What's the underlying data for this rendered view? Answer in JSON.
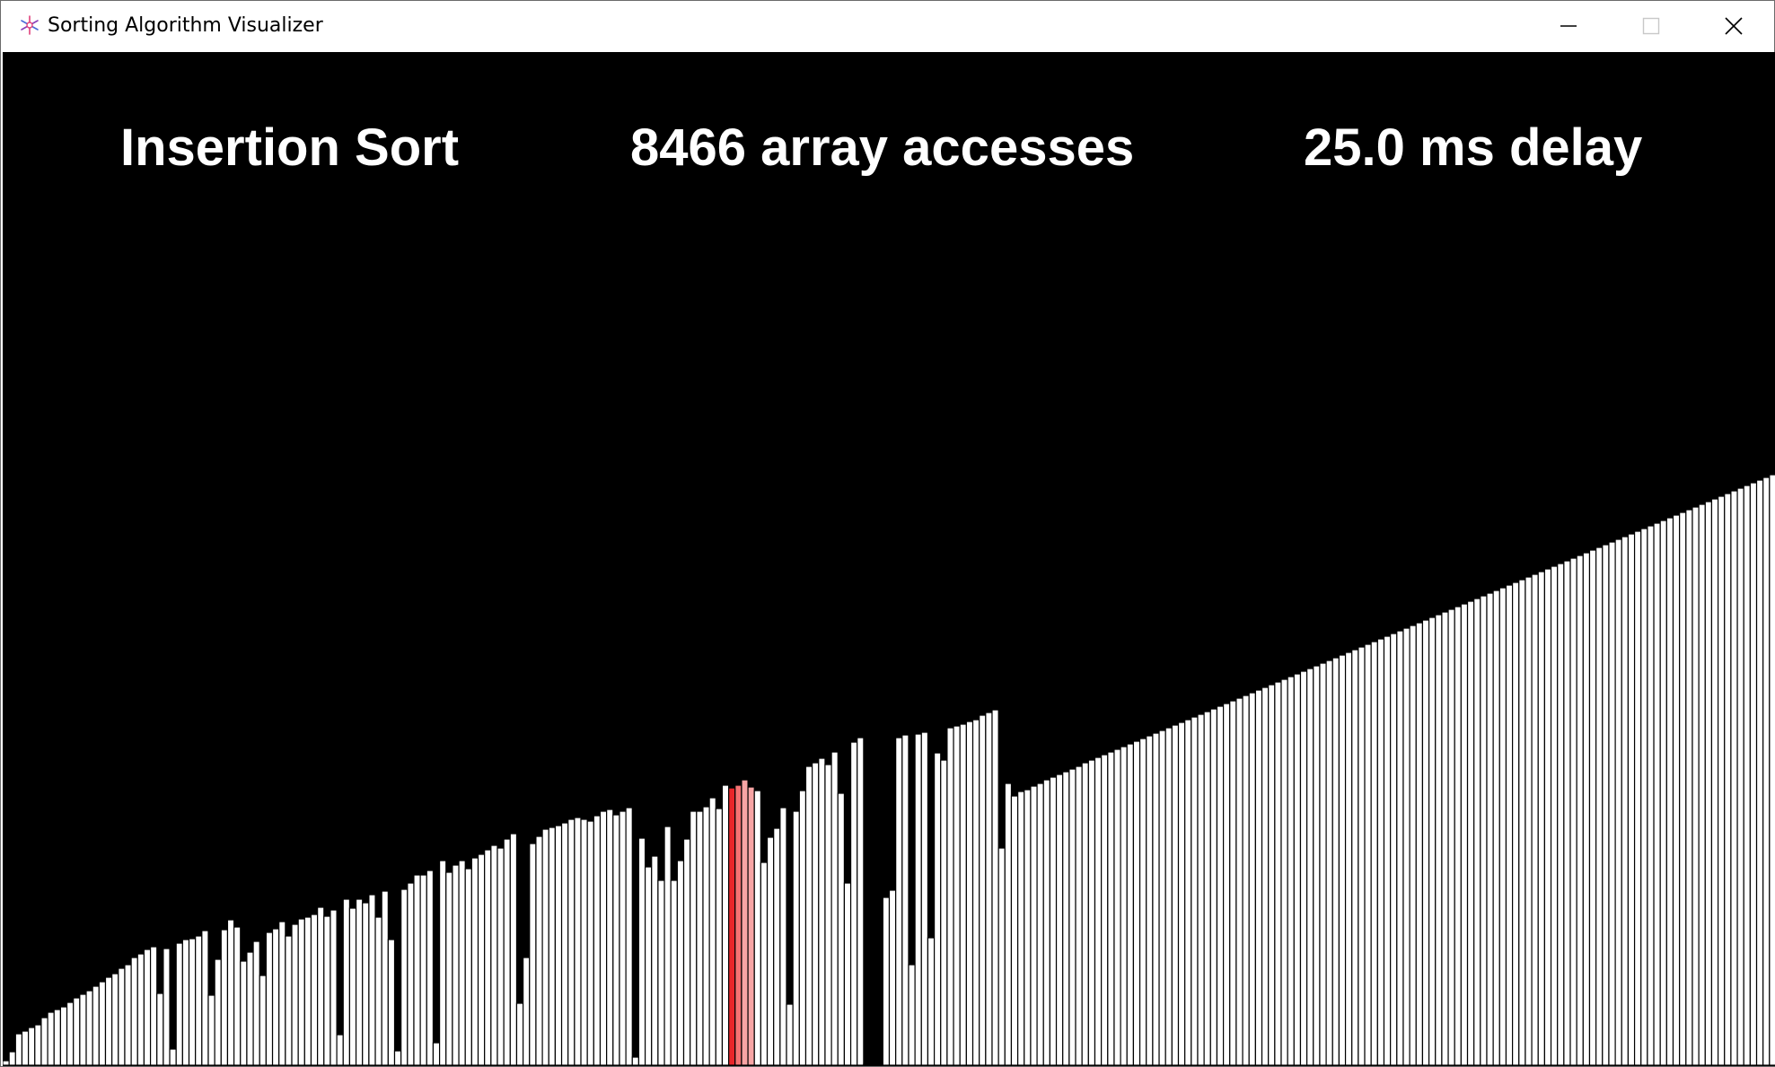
{
  "window": {
    "title": "Sorting Algorithm Visualizer",
    "app_icon": "sparkle-icon",
    "controls": [
      "minimize-icon",
      "maximize-icon",
      "close-icon"
    ]
  },
  "visualizer": {
    "algorithm_label": "Insertion Sort",
    "accesses_label": "8466 array accesses",
    "delay_label": "25.0 ms delay",
    "colors": {
      "background": "#000000",
      "bar": "#ffffff",
      "bar_outline": "#000000",
      "active_bar": "#e8262a",
      "compare_bar": "#f47373",
      "lighter_bar": "#f8a5a5"
    },
    "bar_heights": [
      5,
      15,
      35,
      38,
      42,
      45,
      53,
      59,
      62,
      65,
      70,
      75,
      79,
      83,
      88,
      93,
      98,
      102,
      108,
      112,
      120,
      124,
      129,
      132,
      80,
      130,
      18,
      136,
      140,
      141,
      144,
      150,
      78,
      118,
      151,
      162,
      154,
      116,
      126,
      138,
      100,
      148,
      152,
      160,
      144,
      157,
      163,
      165,
      168,
      176,
      166,
      173,
      34,
      185,
      175,
      185,
      181,
      190,
      165,
      194,
      140,
      16,
      196,
      203,
      212,
      212,
      217,
      25,
      228,
      215,
      223,
      228,
      219,
      231,
      235,
      240,
      245,
      242,
      252,
      258,
      69,
      120,
      247,
      255,
      263,
      265,
      267,
      270,
      274,
      276,
      274,
      272,
      278,
      283,
      285,
      279,
      283,
      287,
      9,
      253,
      221,
      233,
      206,
      266,
      206,
      228,
      252,
      283,
      283,
      288,
      298,
      286,
      312,
      309,
      312,
      318,
      310,
      306,
      226,
      254,
      264,
      287,
      68,
      283,
      306,
      333,
      337,
      342,
      335,
      349,
      303,
      203,
      360,
      365,
      0,
      0,
      0,
      187,
      195,
      365,
      368,
      112,
      369,
      371,
      142,
      348,
      340,
      376,
      378,
      380,
      383,
      385,
      390,
      393,
      396,
      242,
      314,
      300,
      305,
      307,
      311,
      314,
      318,
      321,
      324,
      327,
      330,
      333,
      337,
      340,
      343,
      346,
      349,
      352,
      355,
      358,
      361,
      364,
      367,
      370,
      373,
      376,
      379,
      382,
      385,
      388,
      391,
      394,
      397,
      400,
      403,
      406,
      409,
      412,
      415,
      418,
      421,
      424,
      427,
      430,
      433,
      436,
      439,
      442,
      445,
      448,
      451,
      454,
      457,
      460,
      463,
      466,
      469,
      472,
      475,
      478,
      481,
      484,
      487,
      490,
      493,
      496,
      499,
      502,
      505,
      508,
      511,
      514,
      517,
      520,
      523,
      526,
      529,
      532,
      535,
      538,
      541,
      544,
      547,
      550,
      553,
      556,
      559,
      562,
      565,
      568,
      571,
      574,
      577,
      580,
      583,
      586,
      589,
      592,
      595,
      598,
      601,
      604,
      607,
      610,
      613,
      616,
      619,
      622,
      625,
      628,
      631,
      634,
      637,
      640,
      643,
      646,
      649,
      652,
      655,
      658
    ],
    "bar_states": {
      "113": "active",
      "114": "compare",
      "115": "lighter",
      "116": "lighter"
    }
  }
}
